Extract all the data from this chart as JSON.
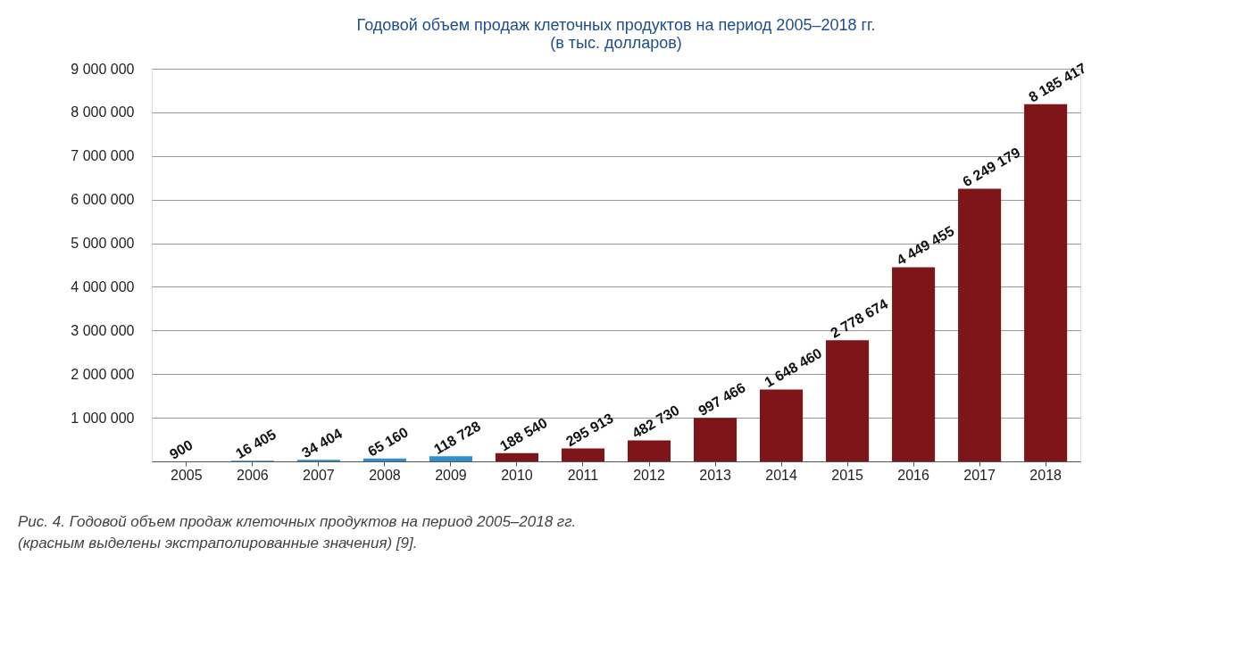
{
  "chart_data": {
    "type": "bar",
    "title": "Годовой объем продаж клеточных продуктов на период 2005–2018 гг.\n(в тыс. долларов)",
    "categories": [
      "2005",
      "2006",
      "2007",
      "2008",
      "2009",
      "2010",
      "2011",
      "2012",
      "2013",
      "2014",
      "2015",
      "2016",
      "2017",
      "2018"
    ],
    "values": [
      900,
      16405,
      34404,
      65160,
      118728,
      188540,
      295913,
      482730,
      997466,
      1648460,
      2778674,
      4449455,
      6249179,
      8185417
    ],
    "value_labels": [
      "900",
      "16 405",
      "34 404",
      "65 160",
      "118 728",
      "188 540",
      "295 913",
      "482 730",
      "997 466",
      "1 648 460",
      "2 778 674",
      "4 449 455",
      "6 249 179",
      "8 185 417"
    ],
    "colors": [
      "#2f8fcf",
      "#2f8fcf",
      "#2f8fcf",
      "#2f8fcf",
      "#2f8fcf",
      "#7e1518",
      "#7e1518",
      "#7e1518",
      "#7e1518",
      "#7e1518",
      "#7e1518",
      "#7e1518",
      "#7e1518",
      "#7e1518"
    ],
    "ylim": [
      0,
      9000000
    ],
    "yticks": [
      {
        "value": 0,
        "label": null
      },
      {
        "value": 1000000,
        "label": "1 000 000"
      },
      {
        "value": 2000000,
        "label": "2 000 000"
      },
      {
        "value": 3000000,
        "label": "3 000 000"
      },
      {
        "value": 4000000,
        "label": "4 000 000"
      },
      {
        "value": 5000000,
        "label": "5 000 000"
      },
      {
        "value": 6000000,
        "label": "6 000 000"
      },
      {
        "value": 7000000,
        "label": "7 000 000"
      },
      {
        "value": 8000000,
        "label": "8 000 000"
      },
      {
        "value": 9000000,
        "label": "9 000 000"
      }
    ],
    "grid": "y",
    "annotations": [
      "Рис. 4. Годовой объем продаж клеточных продуктов на период 2005–2018 гг.\n(красным выделены экстраполированные значения) [9]."
    ]
  }
}
